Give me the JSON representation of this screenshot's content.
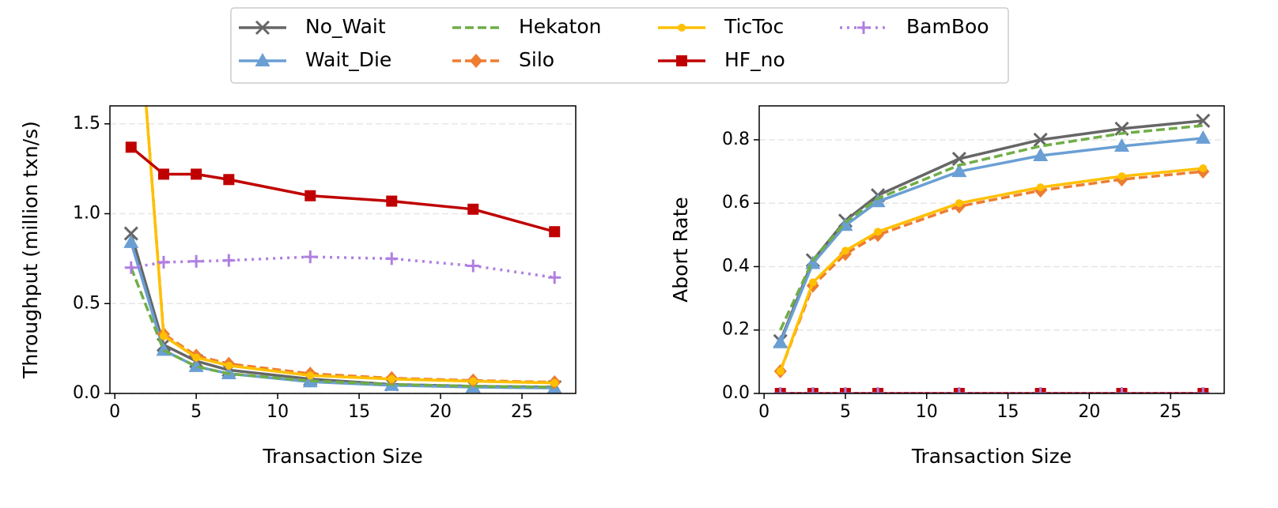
{
  "chart_data": [
    {
      "type": "line",
      "xlabel": "Transaction Size",
      "ylabel": "Throughput (million txn/s)",
      "x": [
        1,
        3,
        5,
        7,
        12,
        17,
        22,
        27
      ],
      "xlim": [
        -0.3,
        28.3
      ],
      "xticks": [
        0,
        5,
        10,
        15,
        20,
        25
      ],
      "ylim": [
        0,
        1.6
      ],
      "yticks": [
        {
          "value": 0,
          "label": "0.0"
        },
        0.5,
        {
          "value": 1,
          "label": "1.0"
        },
        1.5
      ],
      "grid": true,
      "legend": "top",
      "series": [
        {
          "name": "No_Wait",
          "color": "#666666",
          "marker": "x",
          "dash": "solid",
          "values": [
            0.89,
            0.27,
            0.18,
            0.13,
            0.08,
            0.05,
            0.04,
            0.035
          ]
        },
        {
          "name": "Wait_Die",
          "color": "#6a9fd4",
          "marker": "triangle",
          "dash": "solid",
          "values": [
            0.84,
            0.24,
            0.15,
            0.11,
            0.065,
            0.045,
            0.035,
            0.03
          ]
        },
        {
          "name": "Hekaton",
          "color": "#70ad47",
          "marker": "none",
          "dash": "dashed",
          "values": [
            0.7,
            0.24,
            0.15,
            0.11,
            0.07,
            0.05,
            0.04,
            0.035
          ]
        },
        {
          "name": "Silo",
          "color": "#ed7d31",
          "marker": "diamond",
          "dash": "dashed",
          "values": [
            2.7,
            0.33,
            0.21,
            0.165,
            0.11,
            0.085,
            0.072,
            0.062
          ]
        },
        {
          "name": "TicToc",
          "color": "#ffc000",
          "marker": "circle",
          "dash": "solid",
          "values": [
            2.7,
            0.32,
            0.2,
            0.155,
            0.1,
            0.08,
            0.068,
            0.058
          ]
        },
        {
          "name": "HF_no",
          "color": "#c00000",
          "marker": "square",
          "dash": "solid",
          "values": [
            1.37,
            1.22,
            1.22,
            1.19,
            1.1,
            1.07,
            1.025,
            0.9
          ]
        },
        {
          "name": "BamBoo",
          "color": "#b07fe0",
          "marker": "plus",
          "dash": "dotted",
          "values": [
            0.7,
            0.73,
            0.735,
            0.74,
            0.76,
            0.75,
            0.71,
            0.645
          ]
        }
      ]
    },
    {
      "type": "line",
      "xlabel": "Transaction Size",
      "ylabel": "Abort Rate",
      "x": [
        1,
        3,
        5,
        7,
        12,
        17,
        22,
        27
      ],
      "xlim": [
        -0.3,
        28.3
      ],
      "xticks": [
        0,
        5,
        10,
        15,
        20,
        25
      ],
      "ylim": [
        0,
        0.907
      ],
      "yticks": [
        {
          "value": 0,
          "label": "0.0"
        },
        0.2,
        0.4,
        0.6,
        0.8
      ],
      "grid": true,
      "series": [
        {
          "name": "No_Wait",
          "color": "#666666",
          "marker": "x",
          "dash": "solid",
          "values": [
            0.165,
            0.42,
            0.545,
            0.625,
            0.74,
            0.8,
            0.835,
            0.86
          ]
        },
        {
          "name": "Wait_Die",
          "color": "#6a9fd4",
          "marker": "triangle",
          "dash": "solid",
          "values": [
            0.16,
            0.41,
            0.53,
            0.605,
            0.7,
            0.75,
            0.78,
            0.805
          ]
        },
        {
          "name": "Hekaton",
          "color": "#70ad47",
          "marker": "none",
          "dash": "dashed",
          "values": [
            0.2,
            0.42,
            0.54,
            0.615,
            0.72,
            0.78,
            0.82,
            0.845
          ]
        },
        {
          "name": "Silo",
          "color": "#ed7d31",
          "marker": "diamond",
          "dash": "dashed",
          "values": [
            0.07,
            0.34,
            0.44,
            0.5,
            0.59,
            0.64,
            0.675,
            0.7
          ]
        },
        {
          "name": "TicToc",
          "color": "#ffc000",
          "marker": "circle",
          "dash": "solid",
          "values": [
            0.07,
            0.35,
            0.45,
            0.51,
            0.6,
            0.65,
            0.685,
            0.71
          ]
        },
        {
          "name": "HF_no",
          "color": "#c00000",
          "marker": "square",
          "dash": "solid",
          "values": [
            0,
            0,
            0,
            0,
            0,
            0,
            0,
            0
          ]
        },
        {
          "name": "BamBoo",
          "color": "#b07fe0",
          "marker": "plus",
          "dash": "dotted",
          "values": [
            0,
            0,
            0,
            0,
            0,
            0,
            0,
            0
          ]
        }
      ]
    }
  ]
}
